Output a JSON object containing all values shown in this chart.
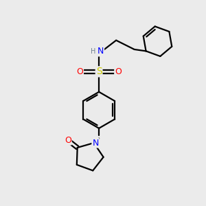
{
  "bg_color": "#ebebeb",
  "atom_colors": {
    "N": "#0000ff",
    "O": "#ff0000",
    "S": "#cccc00",
    "H": "#708090",
    "C": "#000000"
  },
  "bond_color": "#000000",
  "bond_lw": 1.6,
  "font_size_atoms": 8,
  "fig_size": [
    3.0,
    3.0
  ],
  "dpi": 100
}
